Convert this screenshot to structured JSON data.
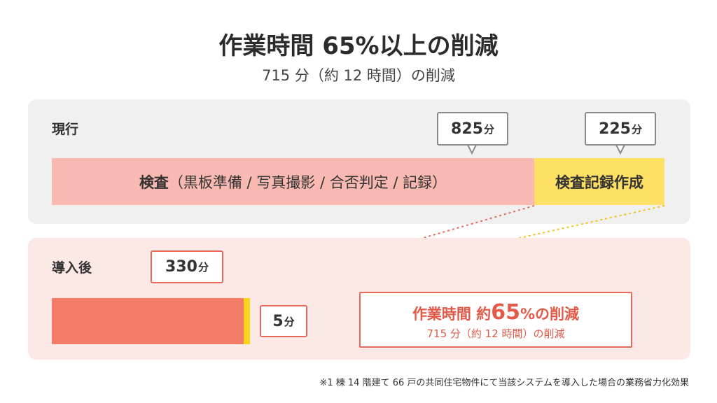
{
  "title": "作業時間 65%以上の削減",
  "subtitle": "715 分（約 12 時間）の削減",
  "current": {
    "label": "現行",
    "inspection_bold": "検査",
    "inspection_rest": "（黒板準備 / 写真撮影 / 合否判定 / 記録）",
    "record_label": "検査記録作成",
    "inspection_minutes": "825",
    "record_minutes": "225",
    "unit": "分"
  },
  "after": {
    "label": "導入後",
    "inspection_minutes": "330",
    "record_minutes": "5",
    "unit": "分"
  },
  "reduction": {
    "main_prefix": "作業時間 約",
    "main_number": "65",
    "main_suffix": "%の削減",
    "sub": "715 分（約 12 時間）の削減"
  },
  "footnote": "※1 棟 14 階建て 66 戸の共同住宅物件にて当該システムを導入した場合の業務省力化効果",
  "colors": {
    "inspection": "#f7b9b1",
    "record": "#fde064",
    "after_bar": "#f47b67",
    "accent_red": "#e8695a",
    "arrow_pink": "#f9c8bf"
  }
}
